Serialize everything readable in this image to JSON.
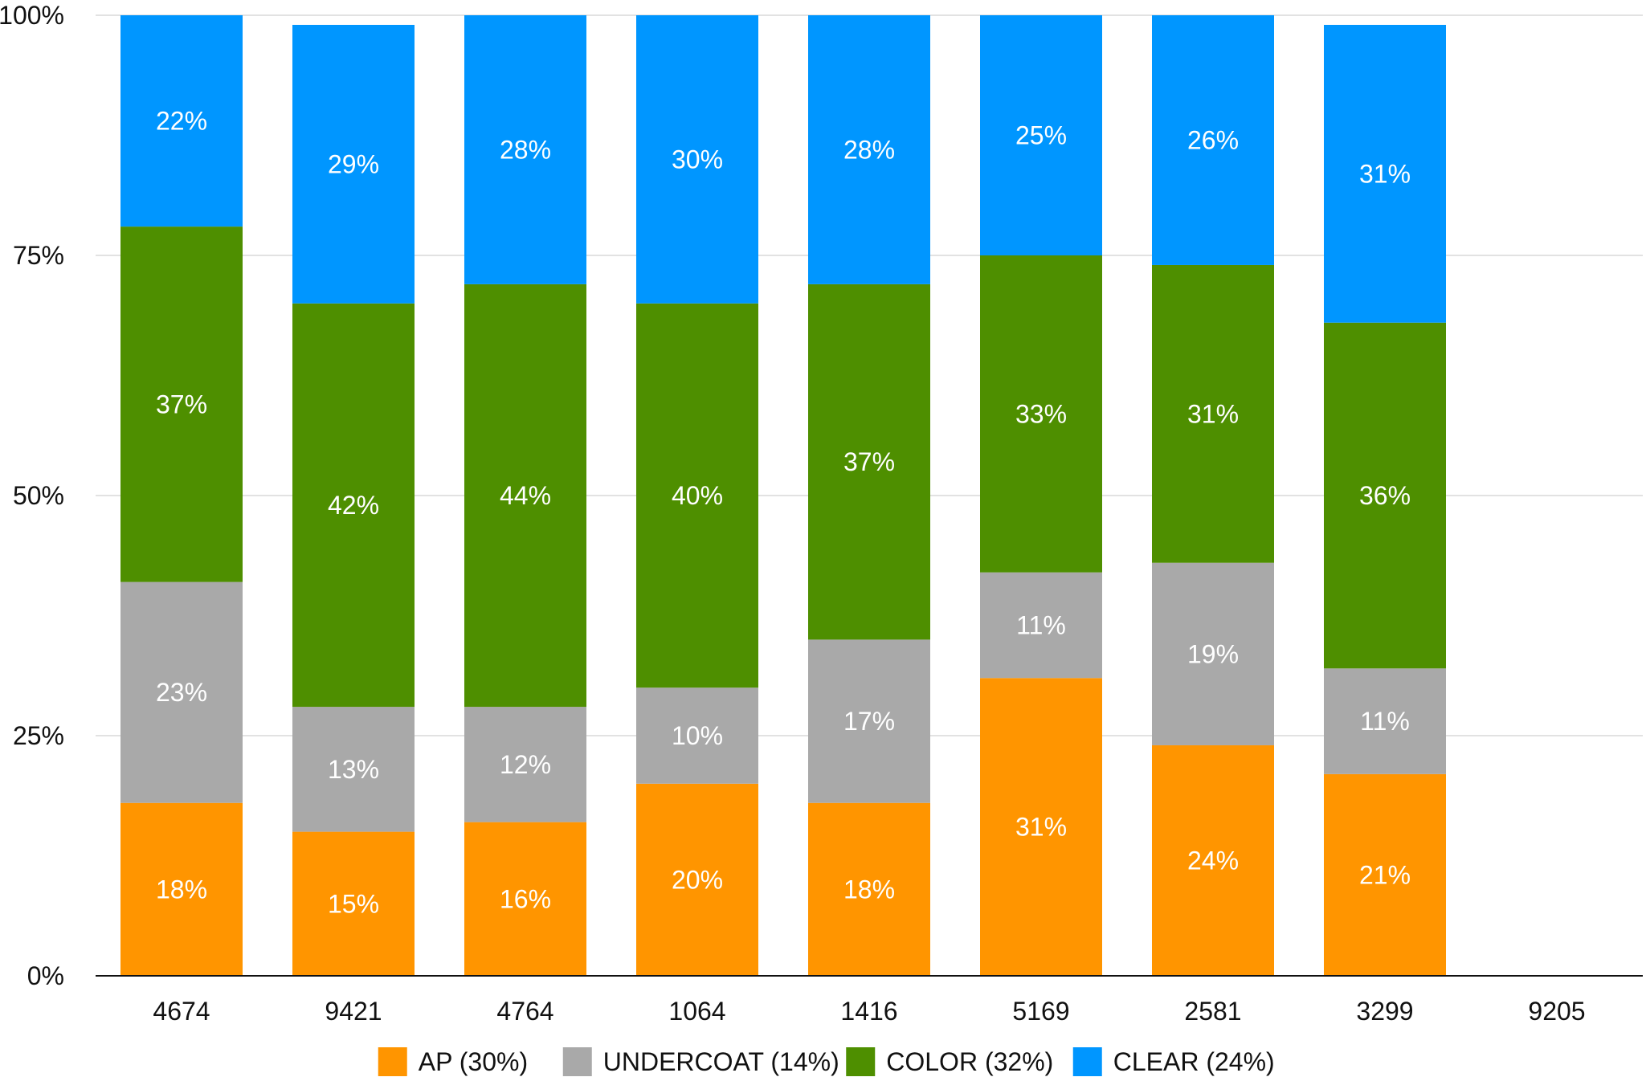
{
  "chart_data": {
    "type": "bar",
    "stacked": true,
    "categories": [
      "4674",
      "9421",
      "4764",
      "1064",
      "1416",
      "5169",
      "2581",
      "3299",
      "9205"
    ],
    "series": [
      {
        "name": "AP (30%)",
        "color": "#ff9500",
        "values": [
          18,
          15,
          16,
          20,
          18,
          31,
          24,
          21,
          null
        ]
      },
      {
        "name": "UNDERCOAT (14%)",
        "color": "#a9a9a9",
        "values": [
          23,
          13,
          12,
          10,
          17,
          11,
          19,
          11,
          null
        ]
      },
      {
        "name": "COLOR (32%)",
        "color": "#4e8f00",
        "values": [
          37,
          42,
          44,
          40,
          37,
          33,
          31,
          36,
          null
        ]
      },
      {
        "name": "CLEAR (24%)",
        "color": "#0096ff",
        "values": [
          22,
          29,
          28,
          30,
          28,
          25,
          26,
          31,
          null
        ]
      }
    ],
    "data_labels": [
      [
        "18%",
        "15%",
        "16%",
        "20%",
        "18%",
        "31%",
        "24%",
        "21%",
        ""
      ],
      [
        "23%",
        "13%",
        "12%",
        "10%",
        "17%",
        "11%",
        "19%",
        "11%",
        ""
      ],
      [
        "37%",
        "42%",
        "44%",
        "40%",
        "37%",
        "33%",
        "31%",
        "36%",
        ""
      ],
      [
        "22%",
        "29%",
        "28%",
        "30%",
        "28%",
        "25%",
        "26%",
        "31%",
        ""
      ]
    ],
    "y_ticks": [
      "0%",
      "25%",
      "50%",
      "75%",
      "100%"
    ],
    "ylim": [
      0,
      100
    ],
    "grid": true,
    "legend_position": "bottom"
  }
}
